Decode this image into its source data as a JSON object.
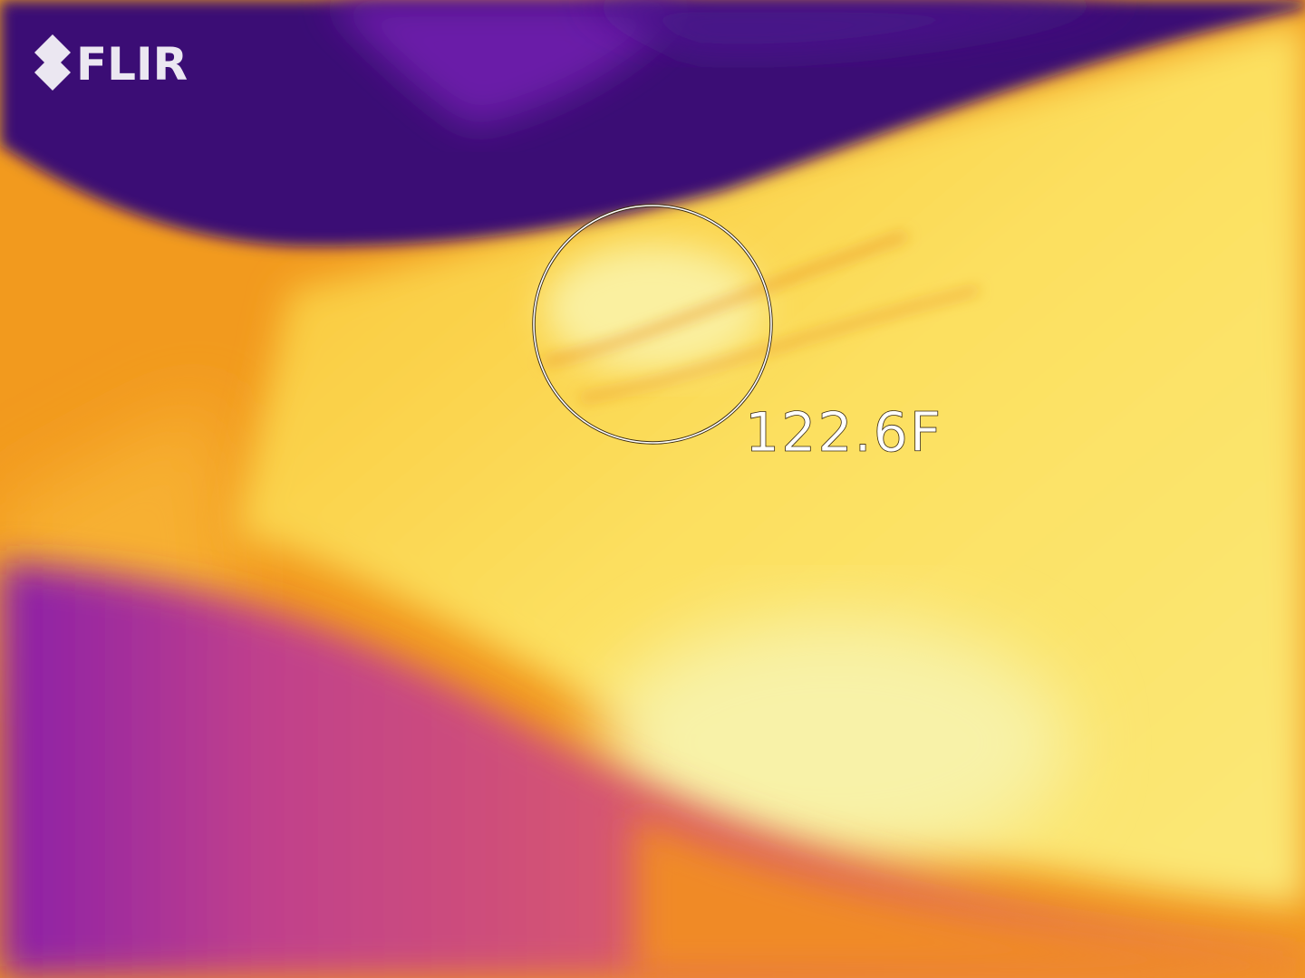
{
  "logo": {
    "text": "FLIR"
  },
  "measurement": {
    "temperature": "122.6F"
  }
}
